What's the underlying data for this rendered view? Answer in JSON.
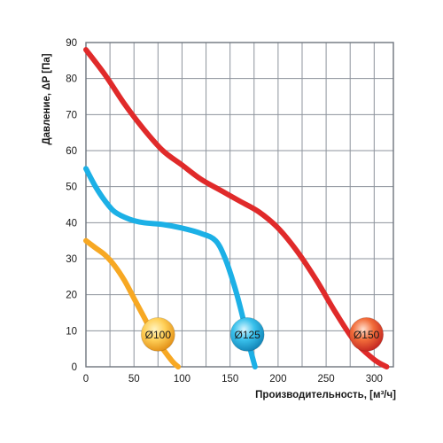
{
  "chart_data": {
    "type": "line",
    "title": "",
    "xlabel": "Производительность, [м³/ч]",
    "ylabel": "Давление, ΔP [Па]",
    "xlim": [
      0,
      320
    ],
    "ylim": [
      0,
      90
    ],
    "x_ticks": [
      0,
      50,
      100,
      150,
      200,
      250,
      300
    ],
    "y_ticks": [
      0,
      10,
      20,
      30,
      40,
      50,
      60,
      70,
      80,
      90
    ],
    "x_grid_step": 25,
    "y_grid_step": 10,
    "grid": true,
    "legend": "none",
    "series": [
      {
        "name": "Ø100",
        "color": "#f7a823",
        "badge_color": "#f5b335",
        "badge_at": [
          75,
          9
        ],
        "points": [
          [
            0,
            35
          ],
          [
            10,
            33
          ],
          [
            20,
            31
          ],
          [
            30,
            28
          ],
          [
            40,
            24
          ],
          [
            50,
            19
          ],
          [
            60,
            14
          ],
          [
            70,
            9
          ],
          [
            80,
            5
          ],
          [
            90,
            1.5
          ],
          [
            96,
            0
          ]
        ]
      },
      {
        "name": "Ø125",
        "color": "#1cb0e6",
        "badge_color": "#1ba7d6",
        "badge_at": [
          168,
          9
        ],
        "points": [
          [
            0,
            55
          ],
          [
            10,
            50
          ],
          [
            20,
            46
          ],
          [
            30,
            43
          ],
          [
            45,
            41
          ],
          [
            60,
            40
          ],
          [
            80,
            39.5
          ],
          [
            100,
            38.5
          ],
          [
            120,
            37
          ],
          [
            135,
            35
          ],
          [
            145,
            30
          ],
          [
            155,
            22
          ],
          [
            163,
            14
          ],
          [
            170,
            6
          ],
          [
            176,
            0
          ]
        ]
      },
      {
        "name": "Ø150",
        "color": "#e02a2a",
        "badge_color": "#e23b2e",
        "badge_at": [
          292,
          9
        ],
        "points": [
          [
            0,
            88
          ],
          [
            20,
            81
          ],
          [
            40,
            73
          ],
          [
            60,
            66
          ],
          [
            80,
            60
          ],
          [
            100,
            56
          ],
          [
            120,
            52
          ],
          [
            140,
            49
          ],
          [
            160,
            46
          ],
          [
            180,
            43
          ],
          [
            200,
            38.5
          ],
          [
            220,
            32
          ],
          [
            240,
            24
          ],
          [
            260,
            15
          ],
          [
            280,
            7
          ],
          [
            300,
            2
          ],
          [
            313,
            0
          ]
        ]
      }
    ]
  }
}
